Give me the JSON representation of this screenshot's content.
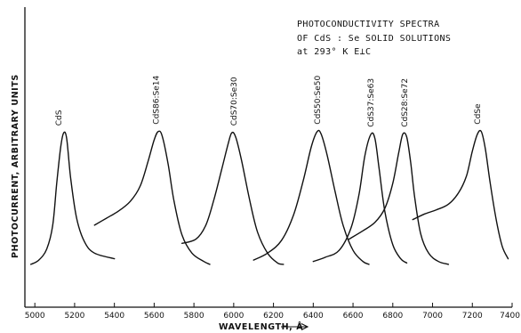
{
  "chart_data": {
    "type": "line",
    "title": [
      "PHOTOCONDUCTIVITY  SPECTRA",
      "OF  CdS : Se  SOLID SOLUTIONS",
      "at  293° K   E⊥C"
    ],
    "xlabel": "WAVELENGTH, Å",
    "ylabel": "PHOTOCURRENT, ARBITRARY UNITS",
    "xlim": [
      4950,
      7400
    ],
    "ylim": [
      0,
      1
    ],
    "xticks": [
      5000,
      5200,
      5400,
      5600,
      5800,
      6000,
      6200,
      6400,
      6600,
      6800,
      7000,
      7200,
      7400
    ],
    "grid": false,
    "series": [
      {
        "name": "CdS",
        "points": [
          [
            4980,
            0.02
          ],
          [
            5020,
            0.05
          ],
          [
            5060,
            0.13
          ],
          [
            5090,
            0.3
          ],
          [
            5110,
            0.6
          ],
          [
            5130,
            0.86
          ],
          [
            5145,
            0.96
          ],
          [
            5160,
            0.92
          ],
          [
            5180,
            0.64
          ],
          [
            5210,
            0.35
          ],
          [
            5250,
            0.18
          ],
          [
            5300,
            0.1
          ],
          [
            5400,
            0.06
          ]
        ]
      },
      {
        "name": "CdS86:Se14",
        "points": [
          [
            5300,
            0.3
          ],
          [
            5360,
            0.35
          ],
          [
            5420,
            0.4
          ],
          [
            5480,
            0.47
          ],
          [
            5530,
            0.58
          ],
          [
            5570,
            0.76
          ],
          [
            5600,
            0.91
          ],
          [
            5620,
            0.97
          ],
          [
            5640,
            0.94
          ],
          [
            5670,
            0.74
          ],
          [
            5700,
            0.47
          ],
          [
            5740,
            0.23
          ],
          [
            5790,
            0.1
          ],
          [
            5850,
            0.04
          ],
          [
            5880,
            0.02
          ]
        ]
      },
      {
        "name": "CdS70:Se30",
        "points": [
          [
            5740,
            0.17
          ],
          [
            5810,
            0.2
          ],
          [
            5860,
            0.3
          ],
          [
            5900,
            0.48
          ],
          [
            5940,
            0.7
          ],
          [
            5970,
            0.87
          ],
          [
            5990,
            0.96
          ],
          [
            6010,
            0.93
          ],
          [
            6040,
            0.76
          ],
          [
            6080,
            0.48
          ],
          [
            6120,
            0.25
          ],
          [
            6170,
            0.1
          ],
          [
            6220,
            0.03
          ],
          [
            6250,
            0.02
          ]
        ]
      },
      {
        "name": "CdS50:Se50",
        "points": [
          [
            6100,
            0.05
          ],
          [
            6170,
            0.1
          ],
          [
            6240,
            0.19
          ],
          [
            6300,
            0.37
          ],
          [
            6350,
            0.62
          ],
          [
            6390,
            0.86
          ],
          [
            6420,
            0.97
          ],
          [
            6440,
            0.95
          ],
          [
            6470,
            0.8
          ],
          [
            6510,
            0.54
          ],
          [
            6550,
            0.3
          ],
          [
            6600,
            0.12
          ],
          [
            6650,
            0.04
          ],
          [
            6680,
            0.02
          ]
        ]
      },
      {
        "name": "CdS37:Se63",
        "points": [
          [
            6400,
            0.04
          ],
          [
            6460,
            0.07
          ],
          [
            6530,
            0.12
          ],
          [
            6590,
            0.28
          ],
          [
            6630,
            0.52
          ],
          [
            6660,
            0.8
          ],
          [
            6690,
            0.95
          ],
          [
            6710,
            0.92
          ],
          [
            6730,
            0.72
          ],
          [
            6760,
            0.4
          ],
          [
            6800,
            0.16
          ],
          [
            6840,
            0.06
          ],
          [
            6870,
            0.03
          ]
        ]
      },
      {
        "name": "CdS28:Se72",
        "points": [
          [
            6580,
            0.2
          ],
          [
            6650,
            0.26
          ],
          [
            6710,
            0.32
          ],
          [
            6760,
            0.42
          ],
          [
            6800,
            0.6
          ],
          [
            6830,
            0.82
          ],
          [
            6850,
            0.95
          ],
          [
            6870,
            0.93
          ],
          [
            6890,
            0.75
          ],
          [
            6910,
            0.5
          ],
          [
            6940,
            0.24
          ],
          [
            6980,
            0.1
          ],
          [
            7030,
            0.04
          ],
          [
            7080,
            0.02
          ]
        ]
      },
      {
        "name": "CdSe",
        "points": [
          [
            6900,
            0.34
          ],
          [
            6960,
            0.38
          ],
          [
            7020,
            0.41
          ],
          [
            7080,
            0.45
          ],
          [
            7130,
            0.53
          ],
          [
            7170,
            0.65
          ],
          [
            7200,
            0.83
          ],
          [
            7225,
            0.95
          ],
          [
            7245,
            0.97
          ],
          [
            7265,
            0.85
          ],
          [
            7290,
            0.6
          ],
          [
            7320,
            0.34
          ],
          [
            7350,
            0.15
          ],
          [
            7380,
            0.06
          ]
        ]
      }
    ],
    "labels": [
      {
        "series": 0,
        "text": "CdS",
        "x": 5120
      },
      {
        "series": 1,
        "text": "CdS86:Se14",
        "x": 5610
      },
      {
        "series": 2,
        "text": "CdS70:Se30",
        "x": 6000
      },
      {
        "series": 3,
        "text": "CdS50:Se50",
        "x": 6420
      },
      {
        "series": 4,
        "text": "CdS37:Se63",
        "x": 6690
      },
      {
        "series": 5,
        "text": "CdS28:Se72",
        "x": 6860
      },
      {
        "series": 6,
        "text": "CdSe",
        "x": 7225
      }
    ]
  }
}
